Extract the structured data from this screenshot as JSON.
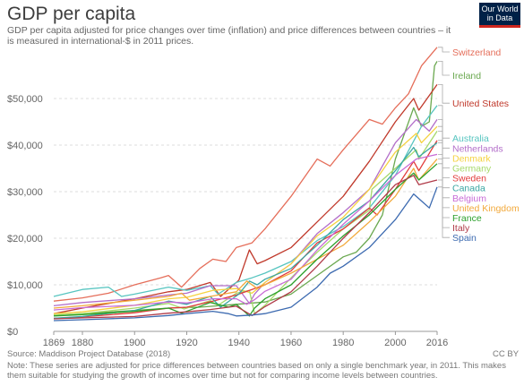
{
  "title": "GDP per capita",
  "subtitle": "GDP per capita adjusted for price changes over time (inflation) and price differences between countries – it is measured in international-$ in 2011 prices.",
  "logo": {
    "line1": "Our World",
    "line2": "in Data"
  },
  "source": "Source: Maddison Project Database (2018)",
  "license": "CC BY",
  "note": "Note: These series are adjusted for price differences between countries based on only a single benchmark year, in 2011. This makes them suitable for studying the growth of incomes over time but not for comparing income levels between countries.",
  "chart_data": {
    "type": "line",
    "xlim": [
      1869,
      2016
    ],
    "ylim": [
      0,
      60000
    ],
    "x_ticks": [
      1869,
      1880,
      1900,
      1920,
      1940,
      1960,
      1980,
      2000,
      2016
    ],
    "x_tick_labels": [
      "1869",
      "1880",
      "1900",
      "1920",
      "1940",
      "1960",
      "1980",
      "2000",
      "2016"
    ],
    "y_ticks": [
      0,
      10000,
      20000,
      30000,
      40000,
      50000
    ],
    "y_tick_labels": [
      "$0",
      "$10,000",
      "$20,000",
      "$30,000",
      "$40,000",
      "$50,000"
    ],
    "grid": "horizontal-dashed",
    "legend": "right",
    "series": [
      {
        "name": "Switzerland",
        "color": "#e56e5a",
        "points": [
          [
            1869,
            6500
          ],
          [
            1880,
            7200
          ],
          [
            1890,
            8200
          ],
          [
            1900,
            10000
          ],
          [
            1910,
            11500
          ],
          [
            1913,
            12000
          ],
          [
            1918,
            9500
          ],
          [
            1925,
            13500
          ],
          [
            1930,
            15500
          ],
          [
            1935,
            15000
          ],
          [
            1939,
            18000
          ],
          [
            1945,
            19000
          ],
          [
            1950,
            22000
          ],
          [
            1960,
            29000
          ],
          [
            1970,
            37000
          ],
          [
            1975,
            35500
          ],
          [
            1980,
            39000
          ],
          [
            1990,
            45500
          ],
          [
            1995,
            44500
          ],
          [
            2000,
            48000
          ],
          [
            2005,
            51000
          ],
          [
            2010,
            57000
          ],
          [
            2016,
            61000
          ]
        ]
      },
      {
        "name": "Ireland",
        "color": "#6aa84f",
        "points": [
          [
            1869,
            3500
          ],
          [
            1880,
            3800
          ],
          [
            1900,
            4500
          ],
          [
            1913,
            5000
          ],
          [
            1925,
            5200
          ],
          [
            1939,
            5800
          ],
          [
            1950,
            6300
          ],
          [
            1960,
            8000
          ],
          [
            1970,
            12000
          ],
          [
            1980,
            16000
          ],
          [
            1985,
            17000
          ],
          [
            1990,
            20000
          ],
          [
            1995,
            25000
          ],
          [
            2000,
            37000
          ],
          [
            2007,
            48000
          ],
          [
            2010,
            44000
          ],
          [
            2013,
            45000
          ],
          [
            2015,
            57000
          ],
          [
            2016,
            58000
          ]
        ]
      },
      {
        "name": "United States",
        "color": "#c0392b",
        "points": [
          [
            1869,
            3800
          ],
          [
            1880,
            5000
          ],
          [
            1890,
            6000
          ],
          [
            1900,
            7000
          ],
          [
            1913,
            8500
          ],
          [
            1920,
            9000
          ],
          [
            1929,
            10500
          ],
          [
            1933,
            7500
          ],
          [
            1940,
            11000
          ],
          [
            1944,
            17500
          ],
          [
            1947,
            14500
          ],
          [
            1950,
            15200
          ],
          [
            1960,
            18000
          ],
          [
            1970,
            23500
          ],
          [
            1980,
            29000
          ],
          [
            1990,
            36500
          ],
          [
            2000,
            45000
          ],
          [
            2007,
            50000
          ],
          [
            2009,
            47500
          ],
          [
            2016,
            53000
          ]
        ]
      },
      {
        "name": "Australia",
        "color": "#57c5c0",
        "points": [
          [
            1869,
            7500
          ],
          [
            1880,
            9000
          ],
          [
            1890,
            9500
          ],
          [
            1895,
            7500
          ],
          [
            1900,
            8000
          ],
          [
            1913,
            9500
          ],
          [
            1920,
            8800
          ],
          [
            1929,
            9800
          ],
          [
            1932,
            8000
          ],
          [
            1939,
            10500
          ],
          [
            1945,
            11500
          ],
          [
            1950,
            12500
          ],
          [
            1960,
            15000
          ],
          [
            1970,
            19500
          ],
          [
            1980,
            22500
          ],
          [
            1990,
            26500
          ],
          [
            2000,
            33500
          ],
          [
            2010,
            44000
          ],
          [
            2016,
            48500
          ]
        ]
      },
      {
        "name": "Netherlands",
        "color": "#b36ec9",
        "points": [
          [
            1869,
            5500
          ],
          [
            1880,
            6200
          ],
          [
            1900,
            7000
          ],
          [
            1913,
            7800
          ],
          [
            1920,
            8200
          ],
          [
            1929,
            9800
          ],
          [
            1939,
            9800
          ],
          [
            1944,
            6000
          ],
          [
            1946,
            8000
          ],
          [
            1950,
            10500
          ],
          [
            1960,
            14500
          ],
          [
            1970,
            21000
          ],
          [
            1980,
            25500
          ],
          [
            1990,
            30500
          ],
          [
            2000,
            40500
          ],
          [
            2008,
            45500
          ],
          [
            2013,
            43000
          ],
          [
            2016,
            45500
          ]
        ]
      },
      {
        "name": "Denmark",
        "color": "#f5d240",
        "points": [
          [
            1869,
            3800
          ],
          [
            1880,
            4200
          ],
          [
            1900,
            5600
          ],
          [
            1913,
            7000
          ],
          [
            1920,
            7300
          ],
          [
            1930,
            8800
          ],
          [
            1939,
            9200
          ],
          [
            1945,
            8200
          ],
          [
            1950,
            10500
          ],
          [
            1960,
            14500
          ],
          [
            1970,
            20500
          ],
          [
            1980,
            24500
          ],
          [
            1990,
            30500
          ],
          [
            2000,
            38500
          ],
          [
            2008,
            42500
          ],
          [
            2010,
            40500
          ],
          [
            2016,
            44000
          ]
        ]
      },
      {
        "name": "Germany",
        "color": "#a6d96a",
        "points": [
          [
            1869,
            3500
          ],
          [
            1880,
            3800
          ],
          [
            1900,
            5000
          ],
          [
            1913,
            6000
          ],
          [
            1919,
            4800
          ],
          [
            1929,
            6600
          ],
          [
            1932,
            5600
          ],
          [
            1939,
            8200
          ],
          [
            1944,
            8800
          ],
          [
            1946,
            3800
          ],
          [
            1950,
            5600
          ],
          [
            1960,
            11500
          ],
          [
            1970,
            17000
          ],
          [
            1980,
            22000
          ],
          [
            1990,
            26000
          ],
          [
            1991,
            30500
          ],
          [
            2000,
            35000
          ],
          [
            2008,
            39000
          ],
          [
            2009,
            37000
          ],
          [
            2016,
            43000
          ]
        ]
      },
      {
        "name": "Sweden",
        "color": "#e23b3b",
        "points": [
          [
            1869,
            2800
          ],
          [
            1880,
            3100
          ],
          [
            1900,
            4000
          ],
          [
            1913,
            5000
          ],
          [
            1920,
            5200
          ],
          [
            1930,
            6500
          ],
          [
            1939,
            7800
          ],
          [
            1945,
            9000
          ],
          [
            1950,
            10000
          ],
          [
            1960,
            13000
          ],
          [
            1970,
            19000
          ],
          [
            1980,
            22000
          ],
          [
            1990,
            26500
          ],
          [
            1993,
            25000
          ],
          [
            2000,
            30500
          ],
          [
            2007,
            36500
          ],
          [
            2009,
            34500
          ],
          [
            2016,
            41000
          ]
        ]
      },
      {
        "name": "Canada",
        "color": "#3aa6a2",
        "points": [
          [
            1869,
            2800
          ],
          [
            1880,
            3200
          ],
          [
            1900,
            4500
          ],
          [
            1913,
            6500
          ],
          [
            1920,
            5800
          ],
          [
            1929,
            7500
          ],
          [
            1933,
            5200
          ],
          [
            1940,
            8000
          ],
          [
            1944,
            10800
          ],
          [
            1947,
            10000
          ],
          [
            1950,
            11200
          ],
          [
            1960,
            13500
          ],
          [
            1970,
            18500
          ],
          [
            1980,
            24000
          ],
          [
            1990,
            28000
          ],
          [
            2000,
            34500
          ],
          [
            2007,
            39500
          ],
          [
            2009,
            37500
          ],
          [
            2016,
            40500
          ]
        ]
      },
      {
        "name": "Belgium",
        "color": "#c86bd6",
        "points": [
          [
            1869,
            4600
          ],
          [
            1880,
            5100
          ],
          [
            1900,
            5600
          ],
          [
            1913,
            6300
          ],
          [
            1920,
            6100
          ],
          [
            1930,
            7000
          ],
          [
            1939,
            7000
          ],
          [
            1943,
            5800
          ],
          [
            1946,
            6800
          ],
          [
            1950,
            8600
          ],
          [
            1960,
            11200
          ],
          [
            1970,
            17500
          ],
          [
            1980,
            23000
          ],
          [
            1990,
            28000
          ],
          [
            2000,
            33500
          ],
          [
            2008,
            37000
          ],
          [
            2016,
            38000
          ]
        ]
      },
      {
        "name": "United Kingdom",
        "color": "#f2a93b",
        "points": [
          [
            1869,
            5000
          ],
          [
            1880,
            5500
          ],
          [
            1900,
            6700
          ],
          [
            1913,
            7500
          ],
          [
            1918,
            8200
          ],
          [
            1921,
            6700
          ],
          [
            1929,
            7500
          ],
          [
            1939,
            8500
          ],
          [
            1943,
            10800
          ],
          [
            1947,
            9200
          ],
          [
            1950,
            10000
          ],
          [
            1960,
            12500
          ],
          [
            1970,
            15500
          ],
          [
            1980,
            18500
          ],
          [
            1990,
            23500
          ],
          [
            2000,
            29000
          ],
          [
            2007,
            35000
          ],
          [
            2009,
            32500
          ],
          [
            2016,
            37000
          ]
        ]
      },
      {
        "name": "France",
        "color": "#2ca02c",
        "points": [
          [
            1869,
            3300
          ],
          [
            1880,
            3600
          ],
          [
            1900,
            4300
          ],
          [
            1913,
            5000
          ],
          [
            1918,
            3900
          ],
          [
            1929,
            6200
          ],
          [
            1936,
            5200
          ],
          [
            1939,
            5800
          ],
          [
            1944,
            3300
          ],
          [
            1946,
            5000
          ],
          [
            1950,
            7000
          ],
          [
            1960,
            10000
          ],
          [
            1970,
            15500
          ],
          [
            1980,
            20500
          ],
          [
            1990,
            25000
          ],
          [
            2000,
            30500
          ],
          [
            2007,
            34000
          ],
          [
            2009,
            32500
          ],
          [
            2016,
            36000
          ]
        ]
      },
      {
        "name": "Italy",
        "color": "#b03a48",
        "points": [
          [
            1869,
            2700
          ],
          [
            1880,
            2900
          ],
          [
            1900,
            3200
          ],
          [
            1913,
            3900
          ],
          [
            1920,
            4200
          ],
          [
            1929,
            4700
          ],
          [
            1939,
            5400
          ],
          [
            1945,
            3400
          ],
          [
            1950,
            5300
          ],
          [
            1960,
            8500
          ],
          [
            1970,
            14000
          ],
          [
            1980,
            20000
          ],
          [
            1990,
            25500
          ],
          [
            2000,
            31500
          ],
          [
            2007,
            33500
          ],
          [
            2009,
            31500
          ],
          [
            2016,
            32500
          ]
        ]
      },
      {
        "name": "Spain",
        "color": "#3c6ab0",
        "points": [
          [
            1869,
            2300
          ],
          [
            1880,
            2500
          ],
          [
            1900,
            2900
          ],
          [
            1913,
            3400
          ],
          [
            1920,
            3800
          ],
          [
            1930,
            4300
          ],
          [
            1936,
            3800
          ],
          [
            1939,
            3300
          ],
          [
            1945,
            3500
          ],
          [
            1950,
            3800
          ],
          [
            1960,
            5200
          ],
          [
            1970,
            9500
          ],
          [
            1975,
            12500
          ],
          [
            1980,
            14000
          ],
          [
            1990,
            18000
          ],
          [
            2000,
            24000
          ],
          [
            2007,
            29500
          ],
          [
            2010,
            28000
          ],
          [
            2013,
            26500
          ],
          [
            2016,
            31000
          ]
        ]
      }
    ]
  }
}
